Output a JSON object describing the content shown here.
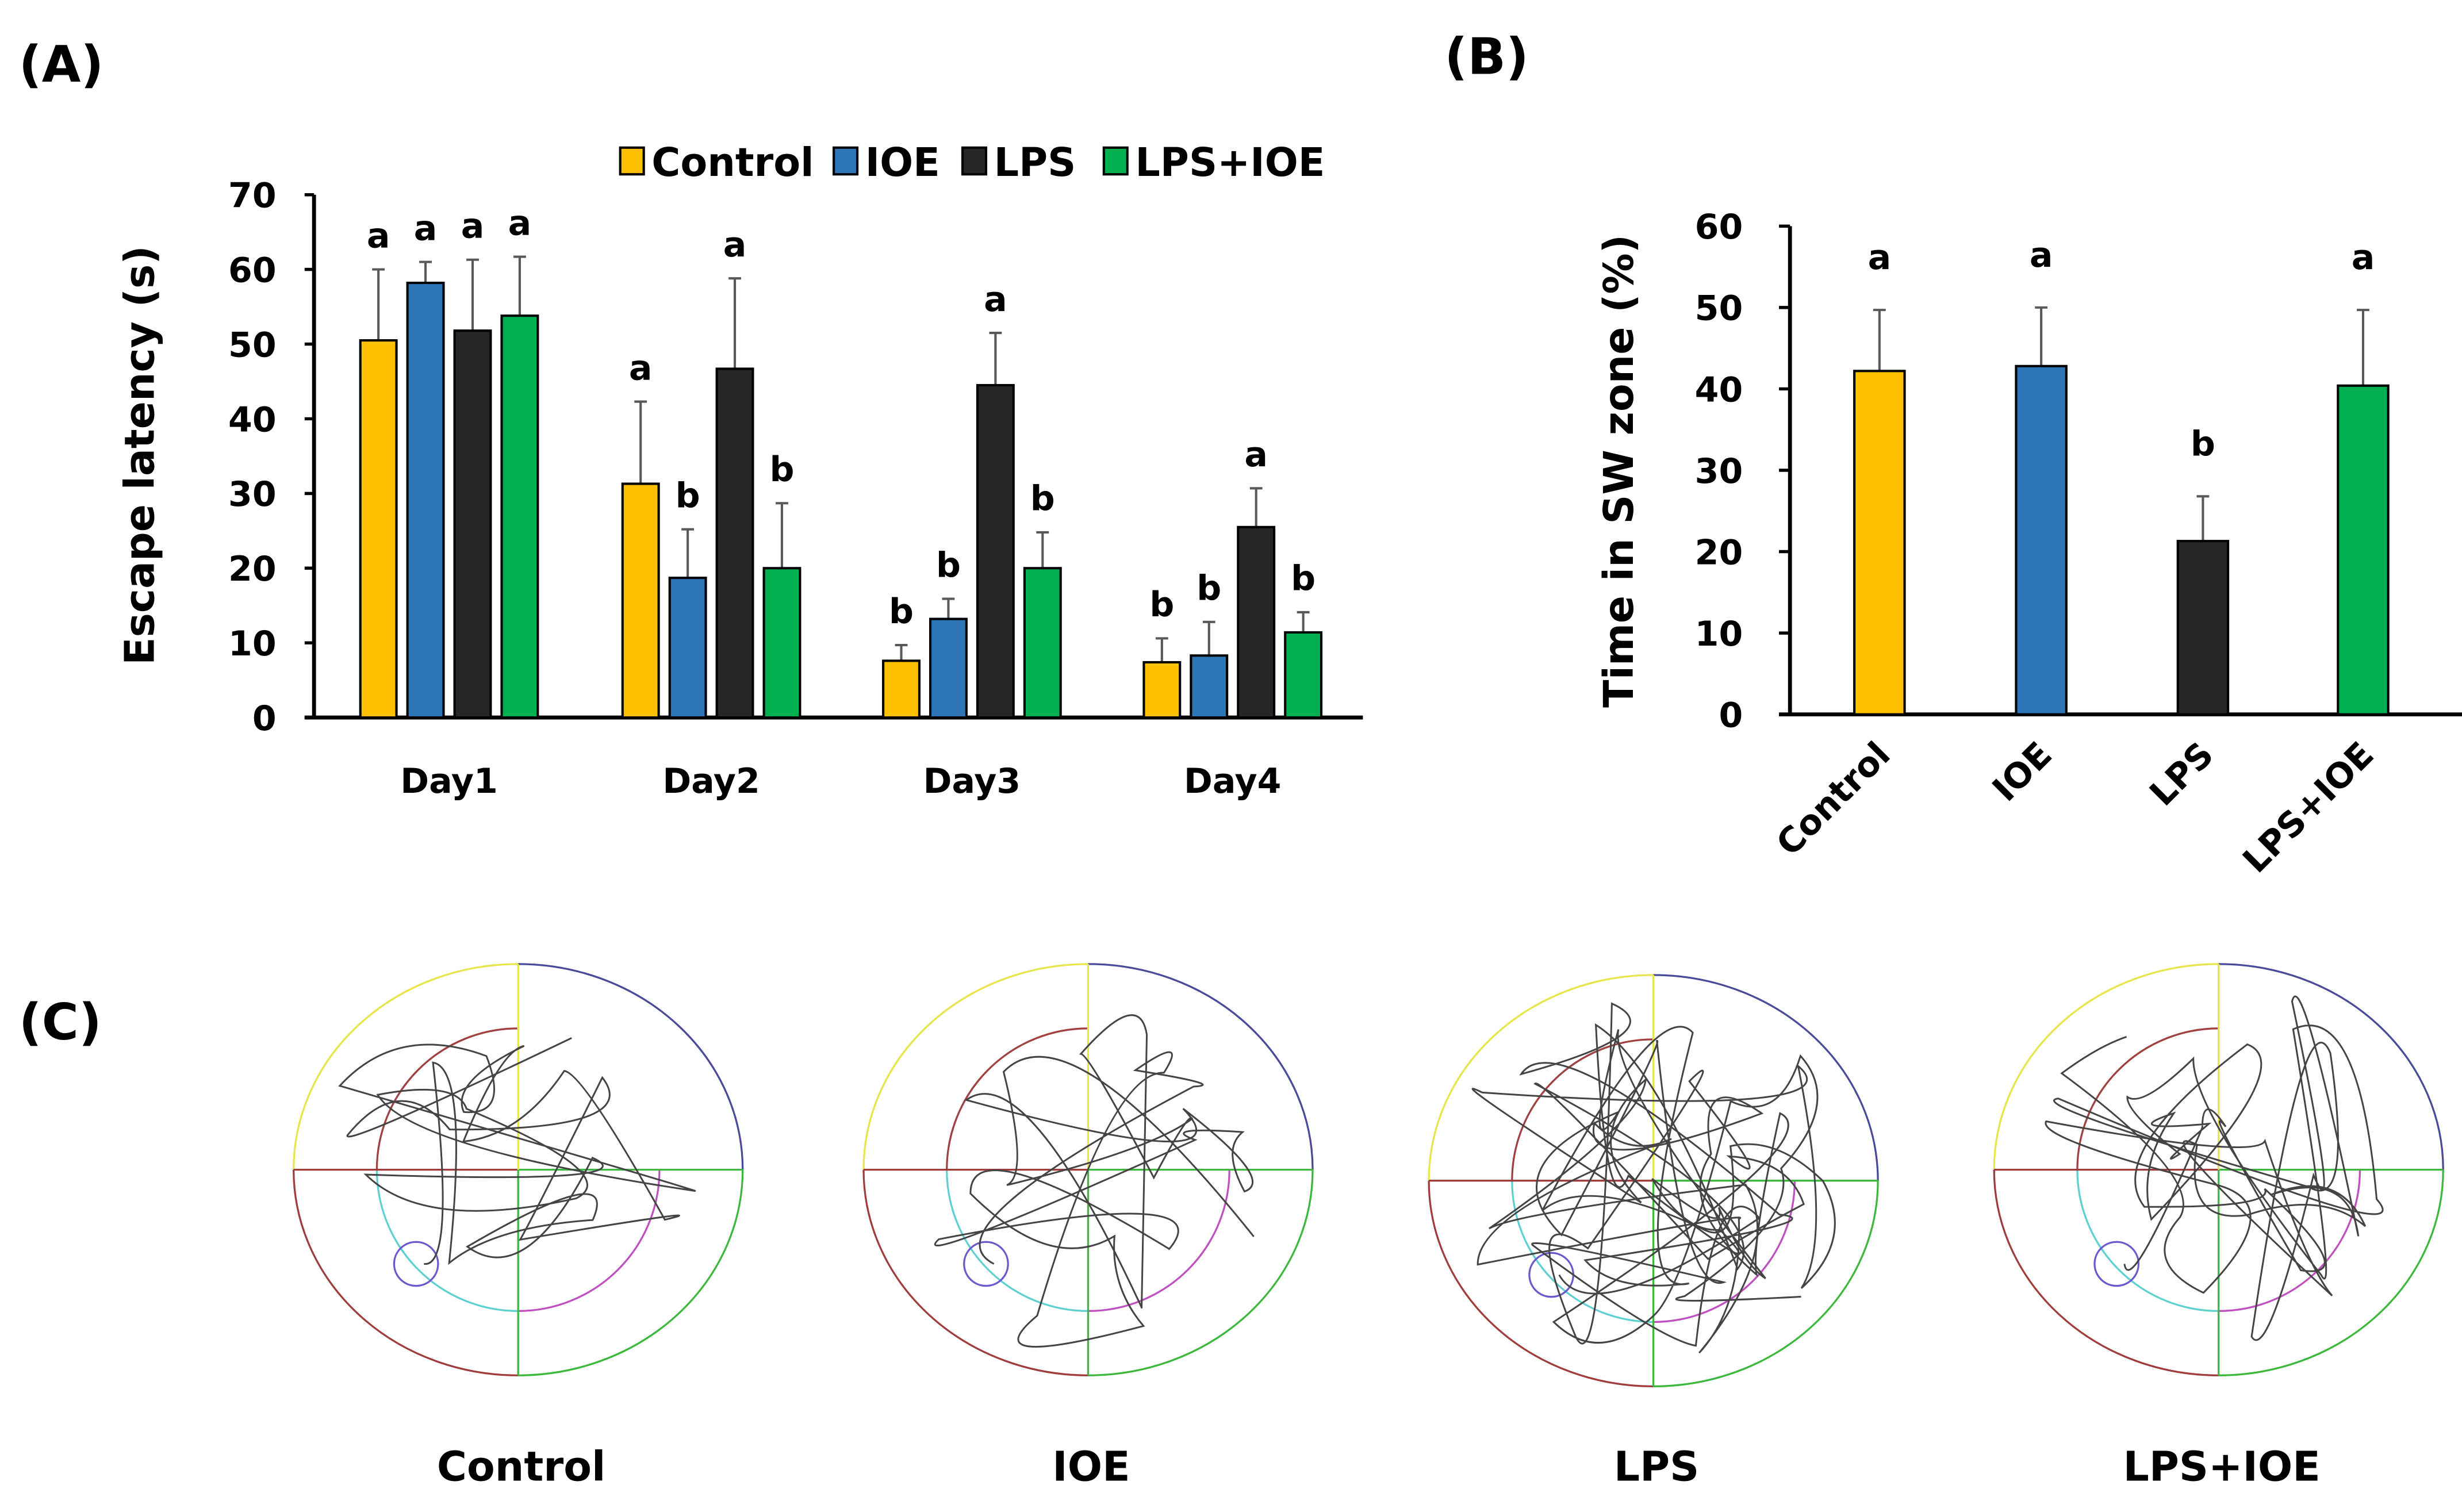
{
  "colors": {
    "Control": "#FFC000",
    "IOE": "#2E75B6",
    "LPS": "#262626",
    "LPS+IOE": "#00B050",
    "error": "#595959"
  },
  "panel_labels": {
    "a": "(A)",
    "b": "(B)",
    "c": "(C)"
  },
  "chart_data": [
    {
      "type": "bar",
      "title": "",
      "xlabel": "",
      "ylabel": "Escape latency (s)",
      "ylim": [
        0,
        70
      ],
      "yticks": [
        0,
        10,
        20,
        30,
        40,
        50,
        60,
        70
      ],
      "categories": [
        "Day1",
        "Day2",
        "Day3",
        "Day4"
      ],
      "legend": {
        "placement": "top",
        "entries": [
          "Control",
          "IOE",
          "LPS",
          "LPS+IOE"
        ]
      },
      "series": [
        {
          "name": "Control",
          "values": [
            50.5,
            31.3,
            7.6,
            7.4
          ],
          "error_upper": [
            60.0,
            42.3,
            9.7,
            10.6
          ],
          "letters": [
            "a",
            "a",
            "b",
            "b"
          ]
        },
        {
          "name": "IOE",
          "values": [
            58.2,
            18.7,
            13.2,
            8.3
          ],
          "error_upper": [
            61.0,
            25.2,
            15.9,
            12.8
          ],
          "letters": [
            "a",
            "b",
            "b",
            "b"
          ]
        },
        {
          "name": "LPS",
          "values": [
            51.8,
            46.7,
            44.5,
            25.5
          ],
          "error_upper": [
            61.3,
            58.8,
            51.5,
            30.7
          ],
          "letters": [
            "a",
            "a",
            "a",
            "a"
          ]
        },
        {
          "name": "LPS+IOE",
          "values": [
            53.8,
            20.0,
            20.0,
            11.4
          ],
          "error_upper": [
            61.7,
            28.7,
            24.8,
            14.1
          ],
          "letters": [
            "a",
            "b",
            "b",
            "b"
          ]
        }
      ]
    },
    {
      "type": "bar",
      "title": "",
      "xlabel": "",
      "ylabel": "Time in SW zone (%)",
      "ylim": [
        0,
        60
      ],
      "yticks": [
        0,
        10,
        20,
        30,
        40,
        50,
        60
      ],
      "categories": [
        "Control",
        "IOE",
        "LPS",
        "LPS+IOE"
      ],
      "values": [
        42.2,
        42.8,
        21.3,
        40.4
      ],
      "error_upper": [
        49.7,
        50.0,
        26.8,
        49.7
      ],
      "letters": [
        "a",
        "a",
        "b",
        "a"
      ]
    }
  ],
  "tracks": {
    "labels": [
      "Control",
      "IOE",
      "LPS",
      "LPS+IOE"
    ]
  }
}
